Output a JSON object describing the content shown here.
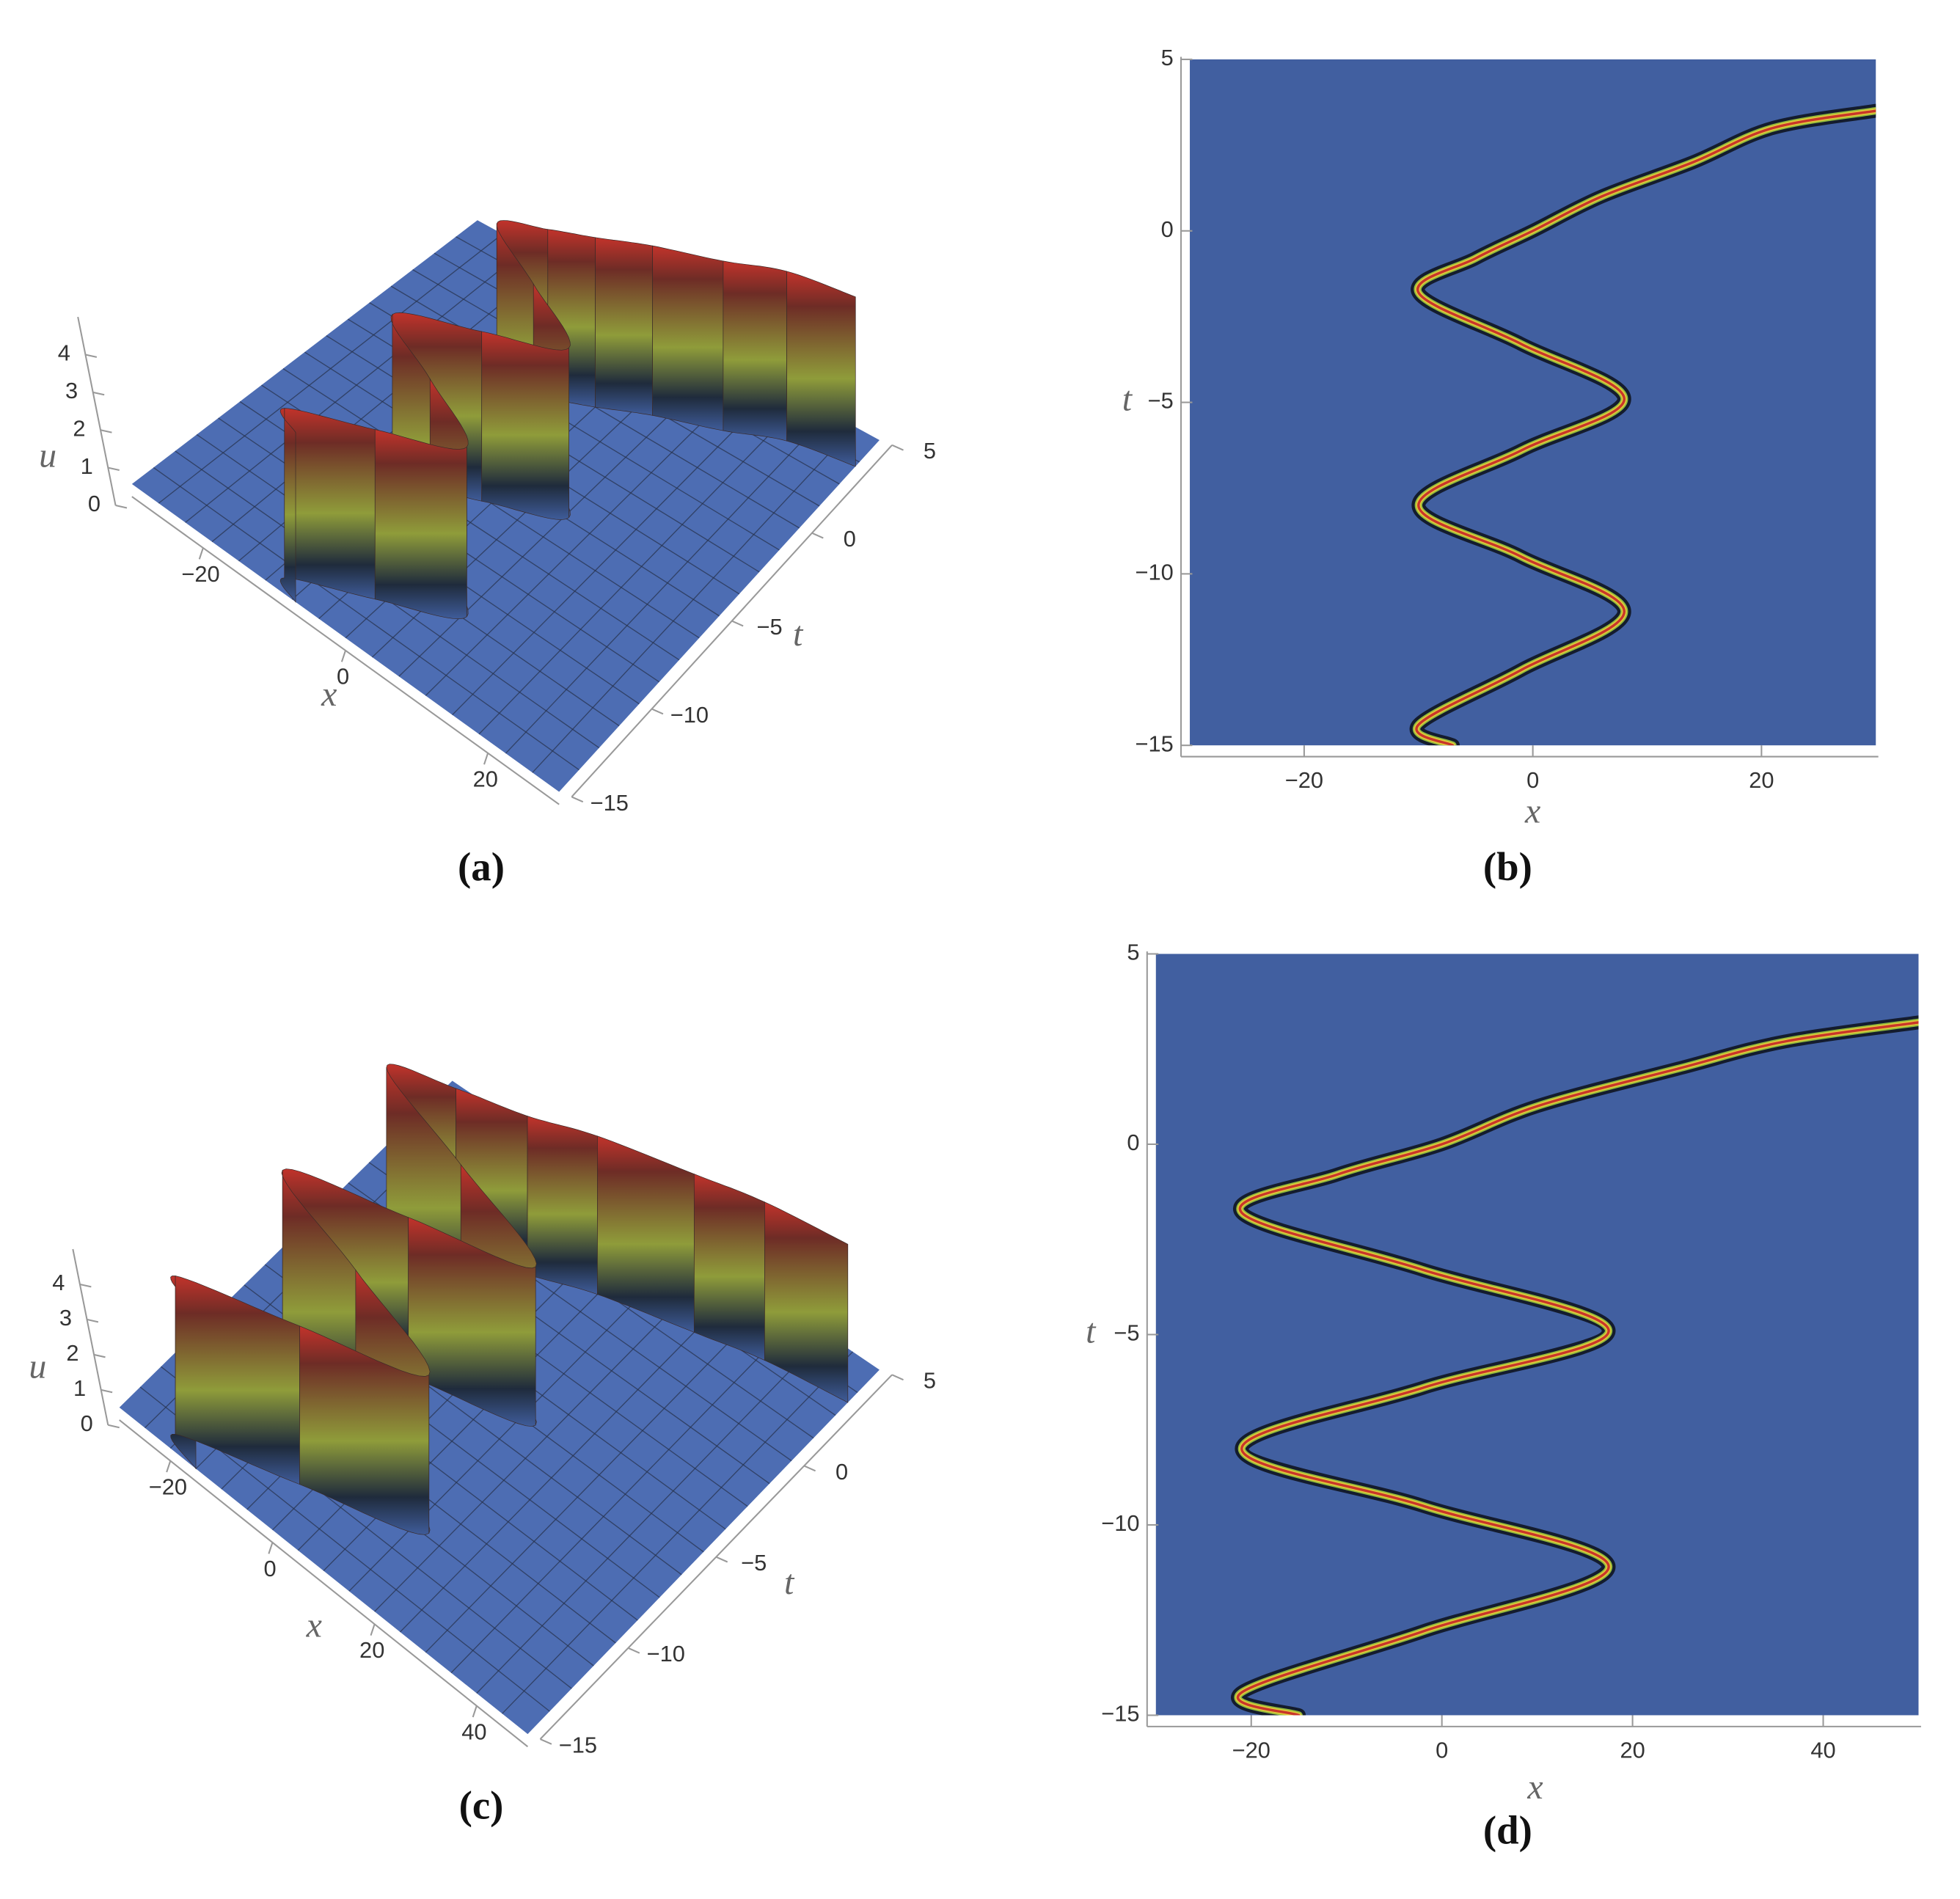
{
  "chart_data": [
    {
      "type": "surface3d",
      "label": "(a)",
      "xlabel": "x",
      "ylabel": "t",
      "zlabel": "u",
      "xlim": [
        -30,
        30
      ],
      "ylim": [
        -15,
        5
      ],
      "zlim": [
        0,
        5
      ],
      "xticks": [
        {
          "value": -20,
          "label": "−20"
        },
        0,
        20
      ],
      "yticks": [
        {
          "value": -15,
          "label": "−15"
        },
        {
          "value": -10,
          "label": "−10"
        },
        {
          "value": -5,
          "label": "−5"
        },
        0,
        5
      ],
      "zticks": [
        0,
        1,
        2,
        3,
        4
      ],
      "peak": 4.5,
      "ridge": {
        "x": [
          -7,
          -10,
          -1,
          8,
          -1,
          -10,
          -1,
          8,
          -1,
          -10,
          -5,
          0,
          6,
          14,
          21,
          30
        ],
        "t": [
          -15,
          -14.4,
          -12.8,
          -11.1,
          -9.5,
          -8,
          -6.4,
          -4.9,
          -3.3,
          -1.8,
          -0.8,
          0,
          1,
          2,
          3,
          3.5
        ]
      }
    },
    {
      "type": "density",
      "label": "(b)",
      "xlabel": "x",
      "ylabel": "t",
      "xlim": [
        -30,
        30
      ],
      "ylim": [
        -15,
        5
      ],
      "xticks": [
        {
          "value": -20,
          "label": "−20"
        },
        0,
        20
      ],
      "yticks": [
        {
          "value": -15,
          "label": "−15"
        },
        {
          "value": -10,
          "label": "−10"
        },
        {
          "value": -5,
          "label": "−5"
        },
        0,
        5
      ],
      "ridge": {
        "x": [
          -7,
          -10,
          -1,
          8,
          -1,
          -10,
          -1,
          8,
          -1,
          -10,
          -5,
          0,
          6,
          14,
          21,
          30
        ],
        "t": [
          -15,
          -14.4,
          -12.8,
          -11.1,
          -9.5,
          -8,
          -6.4,
          -4.9,
          -3.3,
          -1.8,
          -0.8,
          0,
          1,
          2,
          3,
          3.5
        ]
      }
    },
    {
      "type": "surface3d",
      "label": "(c)",
      "xlabel": "x",
      "ylabel": "t",
      "zlabel": "u",
      "xlim": [
        -30,
        50
      ],
      "ylim": [
        -15,
        5
      ],
      "zlim": [
        0,
        5
      ],
      "xticks": [
        {
          "value": -20,
          "label": "−20"
        },
        0,
        20,
        40
      ],
      "yticks": [
        {
          "value": -15,
          "label": "−15"
        },
        {
          "value": -10,
          "label": "−10"
        },
        {
          "value": -5,
          "label": "−5"
        },
        0,
        5
      ],
      "zticks": [
        0,
        1,
        2,
        3,
        4
      ],
      "peak": 4.5,
      "ridge": {
        "x": [
          -15,
          -21,
          -2,
          17.5,
          -2,
          -21,
          -2,
          17.5,
          -2,
          -21,
          -11,
          0,
          10,
          25,
          36,
          50
        ],
        "t": [
          -15,
          -14.4,
          -12.8,
          -11.1,
          -9.5,
          -8,
          -6.4,
          -4.9,
          -3.3,
          -1.8,
          -0.8,
          0,
          1,
          2,
          2.7,
          3.2
        ]
      }
    },
    {
      "type": "density",
      "label": "(d)",
      "xlabel": "x",
      "ylabel": "t",
      "xlim": [
        -30,
        50
      ],
      "ylim": [
        -15,
        5
      ],
      "xticks": [
        {
          "value": -20,
          "label": "−20"
        },
        0,
        20,
        40
      ],
      "yticks": [
        {
          "value": -15,
          "label": "−15"
        },
        {
          "value": -10,
          "label": "−10"
        },
        {
          "value": -5,
          "label": "−5"
        },
        0,
        5
      ],
      "ridge": {
        "x": [
          -15,
          -21,
          -2,
          17.5,
          -2,
          -21,
          -2,
          17.5,
          -2,
          -21,
          -11,
          0,
          10,
          25,
          36,
          50
        ],
        "t": [
          -15,
          -14.4,
          -12.8,
          -11.1,
          -9.5,
          -8,
          -6.4,
          -4.9,
          -3.3,
          -1.8,
          -0.8,
          0,
          1,
          2,
          2.7,
          3.2
        ]
      }
    }
  ]
}
